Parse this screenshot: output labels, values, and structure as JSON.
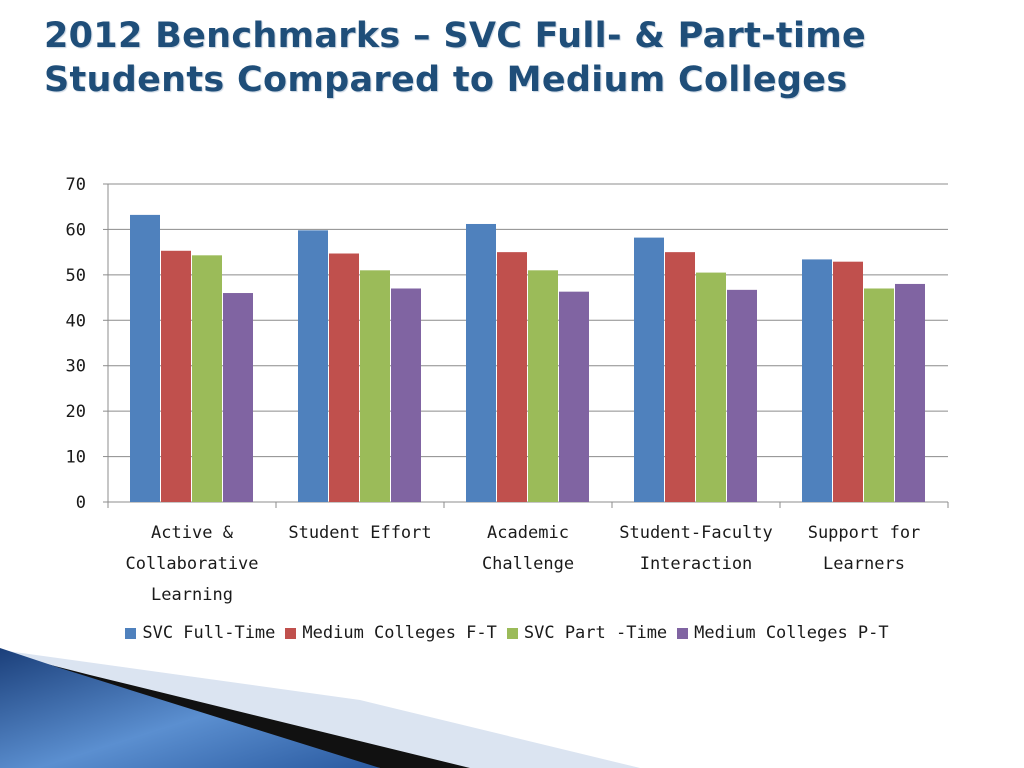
{
  "slide": {
    "title_line1": "2012 Benchmarks – SVC Full- & Part-time",
    "title_line2": "Students Compared to Medium Colleges"
  },
  "chart_data": {
    "type": "bar",
    "categories": [
      [
        "Active &",
        "Collaborative",
        "Learning"
      ],
      [
        "Student Effort"
      ],
      [
        "Academic",
        "Challenge"
      ],
      [
        "Student-Faculty",
        "Interaction"
      ],
      [
        "Support for",
        "Learners"
      ]
    ],
    "series": [
      {
        "name": "SVC Full-Time",
        "color": "#4f81bd",
        "values": [
          63.2,
          59.8,
          61.2,
          58.2,
          53.4
        ]
      },
      {
        "name": "Medium Colleges F-T",
        "color": "#c0504d",
        "values": [
          55.3,
          54.7,
          55.0,
          55.0,
          52.9
        ]
      },
      {
        "name": "SVC Part -Time",
        "color": "#9bbb59",
        "values": [
          54.3,
          51.0,
          51.0,
          50.5,
          47.0
        ]
      },
      {
        "name": "Medium Colleges P-T",
        "color": "#8064a2",
        "values": [
          46.0,
          47.0,
          46.3,
          46.7,
          48.0
        ]
      }
    ],
    "ylim": [
      0,
      70
    ],
    "yticks": [
      0,
      10,
      20,
      30,
      40,
      50,
      60,
      70
    ],
    "grid": true,
    "legend_position": "bottom"
  }
}
